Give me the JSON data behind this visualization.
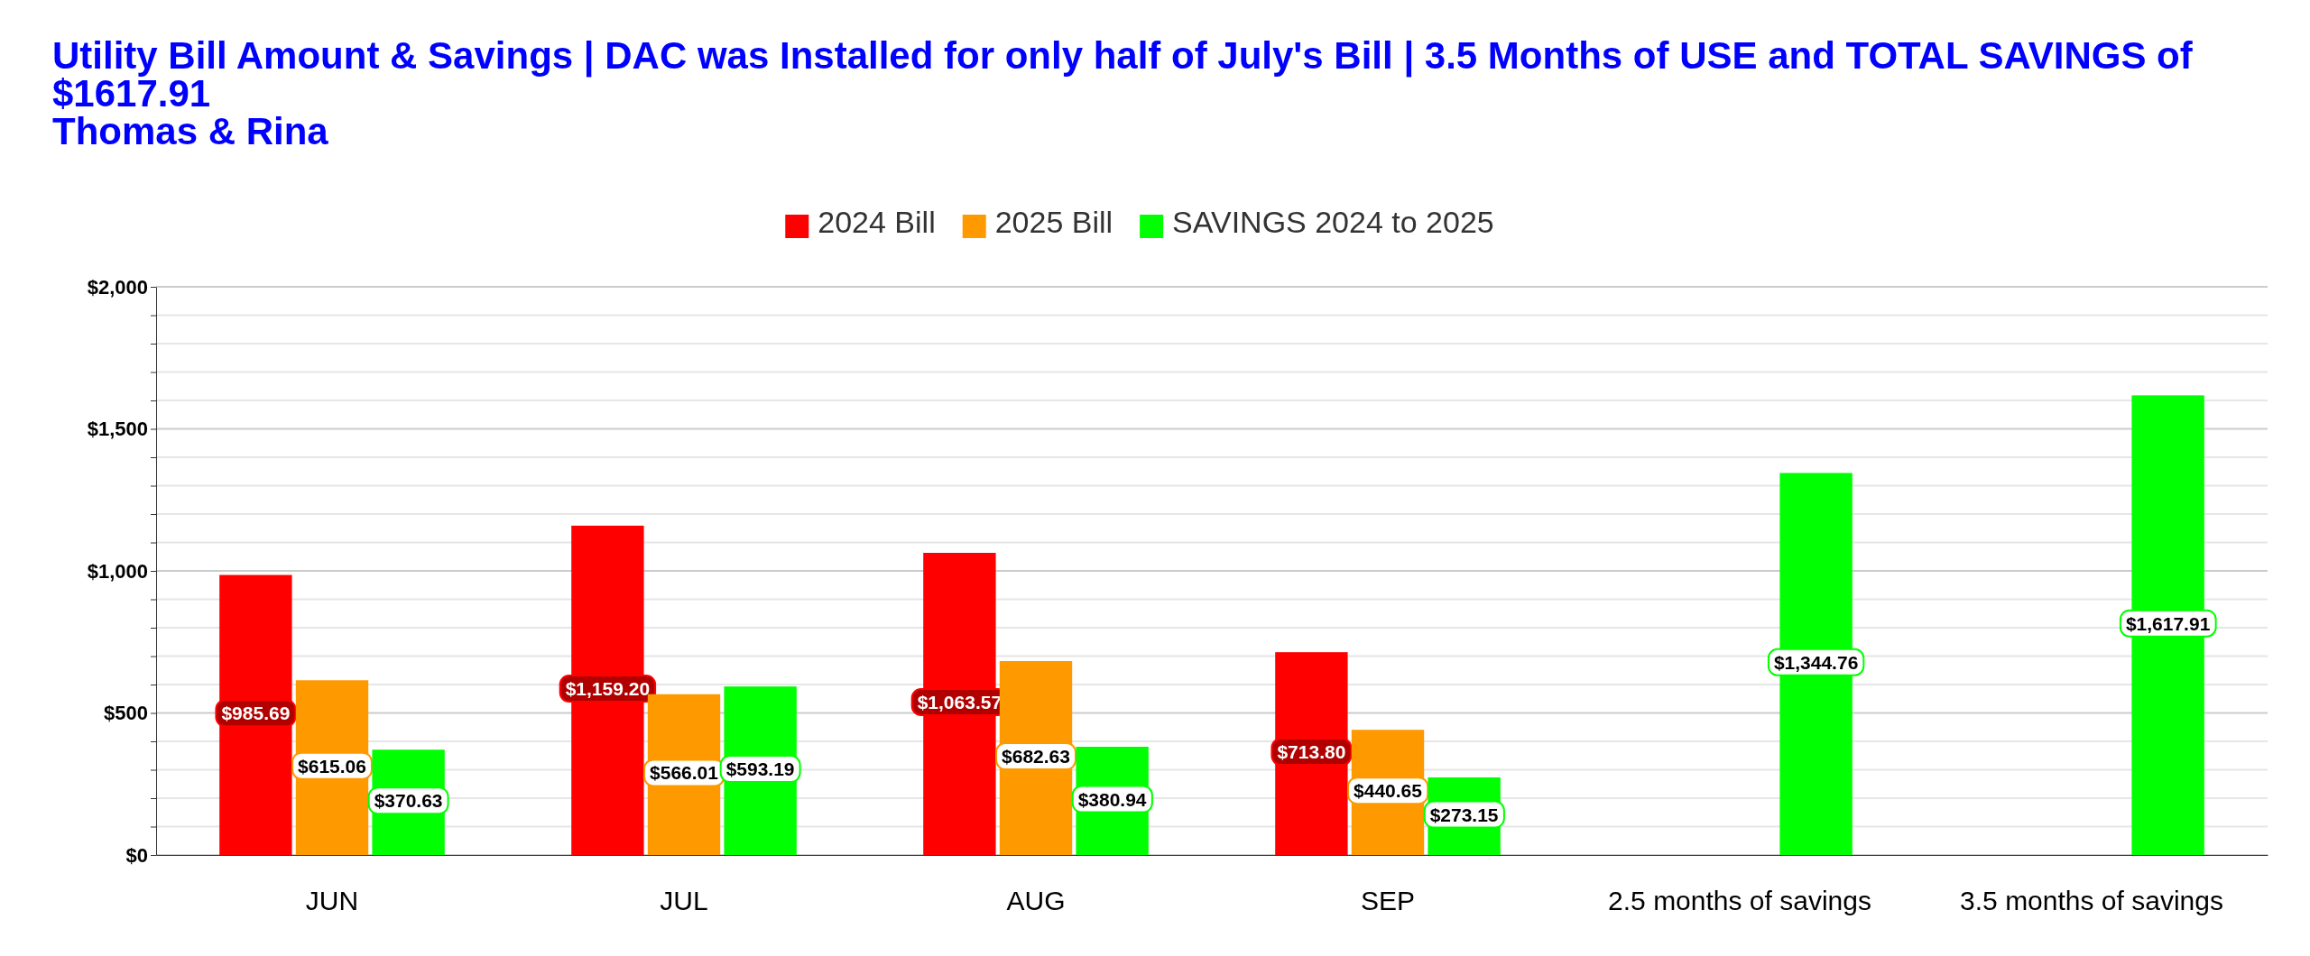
{
  "chart_data": {
    "type": "bar",
    "title": "Utility Bill Amount & Savings     |     DAC was Installed for only half of July's Bill      |      3.5 Months of USE and TOTAL SAVINGS of $1617.91",
    "subtitle": "Thomas & Rina",
    "categories": [
      "JUN",
      "JUL",
      "AUG",
      "SEP",
      "2.5 months of savings",
      "3.5 months of savings"
    ],
    "series": [
      {
        "name": "2024 Bill",
        "color": "#ff0000",
        "values": [
          985.69,
          1159.2,
          1063.57,
          713.8,
          null,
          null
        ],
        "value_labels": [
          "$985.69",
          "$1,159.20",
          "$1,063.57",
          "$713.80",
          null,
          null
        ]
      },
      {
        "name": "2025 Bill",
        "color": "#ff9900",
        "values": [
          615.06,
          566.01,
          682.63,
          440.65,
          null,
          null
        ],
        "value_labels": [
          "$615.06",
          "$566.01",
          "$682.63",
          "$440.65",
          null,
          null
        ]
      },
      {
        "name": "SAVINGS 2024 to 2025",
        "color": "#00ff00",
        "values": [
          370.63,
          593.19,
          380.94,
          273.15,
          1344.76,
          1617.91
        ],
        "value_labels": [
          "$370.63",
          "$593.19",
          "$380.94",
          "$273.15",
          "$1,344.76",
          "$1,617.91"
        ]
      }
    ],
    "ylim": [
      0,
      2000
    ],
    "yticks": [
      {
        "value": 0,
        "label": "$0"
      },
      {
        "value": 100,
        "label": null
      },
      {
        "value": 200,
        "label": null
      },
      {
        "value": 300,
        "label": null
      },
      {
        "value": 400,
        "label": null
      },
      {
        "value": 500,
        "label": "$500"
      },
      {
        "value": 600,
        "label": null
      },
      {
        "value": 700,
        "label": null
      },
      {
        "value": 800,
        "label": null
      },
      {
        "value": 900,
        "label": null
      },
      {
        "value": 1000,
        "label": "$1,000"
      },
      {
        "value": 1100,
        "label": null
      },
      {
        "value": 1200,
        "label": null
      },
      {
        "value": 1300,
        "label": null
      },
      {
        "value": 1400,
        "label": null
      },
      {
        "value": 1500,
        "label": "$1,500"
      },
      {
        "value": 1600,
        "label": null
      },
      {
        "value": 1700,
        "label": null
      },
      {
        "value": 1800,
        "label": null
      },
      {
        "value": 1900,
        "label": null
      },
      {
        "value": 2000,
        "label": "$2,000"
      }
    ],
    "grid": "y",
    "legend": "top"
  }
}
